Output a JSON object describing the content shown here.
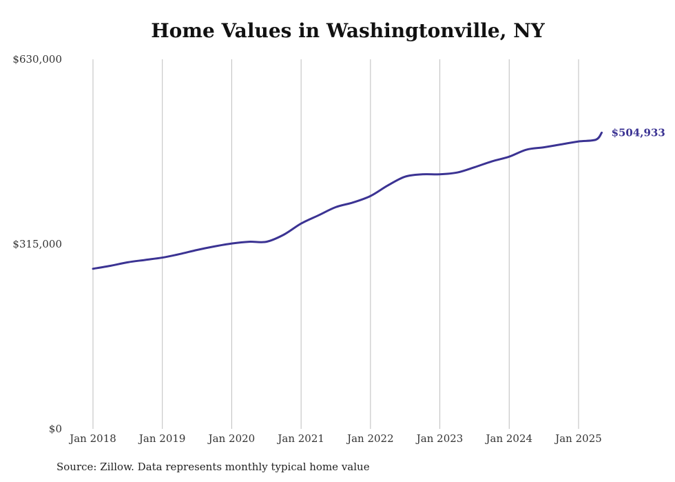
{
  "chart_data": {
    "type": "line",
    "title": "Home Values in Washingtonville, NY",
    "source": "Source: Zillow. Data represents monthly typical home value",
    "xlabel": "",
    "ylabel": "",
    "x_tick_labels": [
      "Jan 2018",
      "Jan 2019",
      "Jan 2020",
      "Jan 2021",
      "Jan 2022",
      "Jan 2023",
      "Jan 2024",
      "Jan 2025"
    ],
    "y_tick_labels": [
      "$0",
      "$315,000",
      "$630,000"
    ],
    "y_ticks": [
      0,
      315000,
      630000
    ],
    "ylim": [
      0,
      630000
    ],
    "grid": "vertical",
    "line_color": "#3b3393",
    "grid_color": "#bdbdbd",
    "end_label": "$504,933",
    "series": [
      {
        "points": [
          [
            "2018-01",
            273000
          ],
          [
            "2018-04",
            278000
          ],
          [
            "2018-07",
            284000
          ],
          [
            "2018-10",
            288000
          ],
          [
            "2019-01",
            292000
          ],
          [
            "2019-04",
            298000
          ],
          [
            "2019-07",
            305000
          ],
          [
            "2019-10",
            311000
          ],
          [
            "2020-01",
            316000
          ],
          [
            "2020-04",
            319000
          ],
          [
            "2020-07",
            319000
          ],
          [
            "2020-10",
            331000
          ],
          [
            "2021-01",
            350000
          ],
          [
            "2021-04",
            364000
          ],
          [
            "2021-07",
            378000
          ],
          [
            "2021-10",
            386000
          ],
          [
            "2022-01",
            397000
          ],
          [
            "2022-04",
            415000
          ],
          [
            "2022-07",
            430000
          ],
          [
            "2022-10",
            434000
          ],
          [
            "2023-01",
            434000
          ],
          [
            "2023-04",
            437000
          ],
          [
            "2023-07",
            446000
          ],
          [
            "2023-10",
            456000
          ],
          [
            "2024-01",
            464000
          ],
          [
            "2024-04",
            476000
          ],
          [
            "2024-07",
            480000
          ],
          [
            "2024-10",
            485000
          ],
          [
            "2025-01",
            490000
          ],
          [
            "2025-04",
            493000
          ],
          [
            "2025-05",
            504933
          ]
        ]
      }
    ]
  }
}
